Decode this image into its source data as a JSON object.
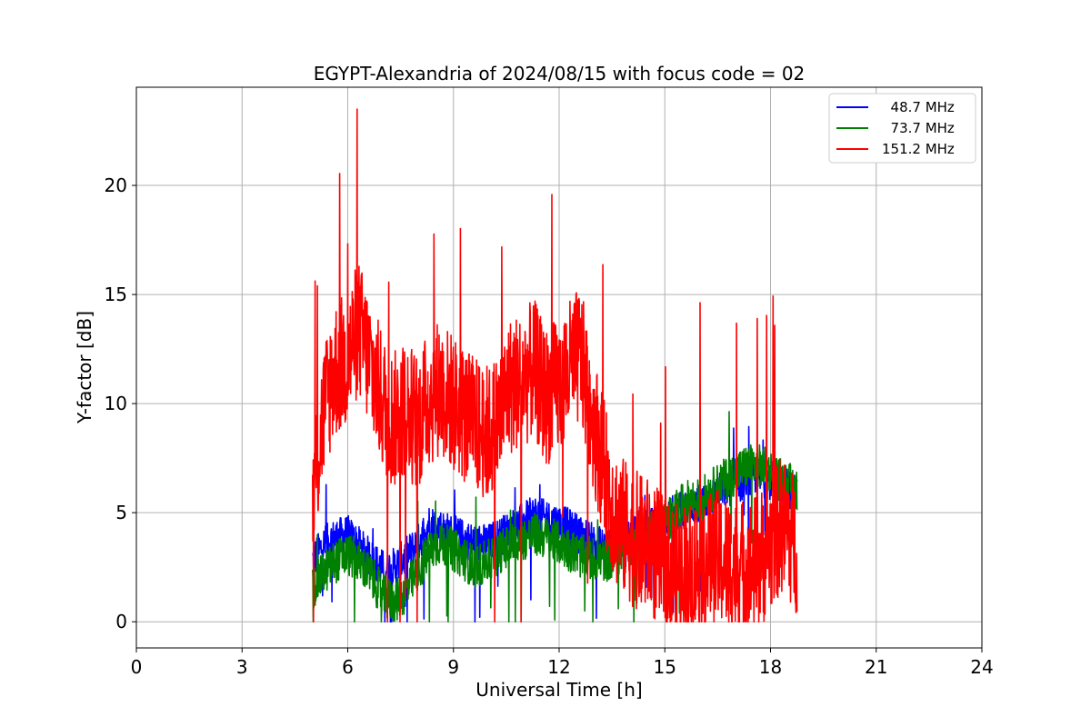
{
  "chart_data": {
    "type": "line",
    "title": "EGYPT-Alexandria of 2024/08/15 with focus code = 02",
    "xlabel": "Universal Time [h]",
    "ylabel": "Y-factor [dB]",
    "xlim": [
      0,
      24
    ],
    "ylim": [
      -1.2,
      24.5
    ],
    "xticks": [
      0,
      3,
      6,
      9,
      12,
      15,
      18,
      21,
      24
    ],
    "yticks": [
      0,
      5,
      10,
      15,
      20
    ],
    "xtick_labels": [
      "0",
      "3",
      "6",
      "9",
      "12",
      "15",
      "18",
      "21",
      "24"
    ],
    "ytick_labels": [
      "0",
      "5",
      "10",
      "15",
      "20"
    ],
    "grid": true,
    "legend_position": "top-right",
    "series": [
      {
        "name": "  48.7 MHz",
        "color": "#0000ff",
        "x": [
          5.0,
          5.3,
          5.6,
          6.0,
          6.3,
          6.6,
          7.0,
          7.3,
          7.6,
          8.0,
          8.3,
          8.6,
          9.0,
          9.3,
          9.6,
          10.0,
          10.3,
          10.6,
          11.0,
          11.3,
          11.6,
          12.0,
          12.3,
          12.6,
          13.0,
          13.3,
          13.6,
          14.0,
          14.3,
          14.6,
          15.0,
          15.3,
          15.6,
          16.0,
          16.3,
          16.6,
          17.0,
          17.3,
          17.6,
          18.0,
          18.3,
          18.75
        ],
        "y": [
          2.8,
          3.5,
          3.8,
          4.0,
          3.5,
          3.0,
          2.4,
          2.5,
          2.9,
          3.6,
          4.5,
          4.3,
          4.0,
          3.8,
          3.6,
          3.6,
          3.9,
          4.2,
          4.6,
          4.9,
          4.7,
          4.5,
          4.3,
          4.0,
          3.6,
          3.4,
          3.5,
          4.0,
          4.3,
          4.3,
          4.6,
          5.0,
          5.2,
          5.4,
          5.7,
          6.0,
          6.3,
          6.5,
          6.6,
          6.5,
          6.3,
          5.9
        ],
        "spread": 0.9
      },
      {
        "name": "  73.7 MHz",
        "color": "#008000",
        "x": [
          5.0,
          5.3,
          5.6,
          6.0,
          6.3,
          6.6,
          7.0,
          7.3,
          7.6,
          8.0,
          8.3,
          8.6,
          9.0,
          9.3,
          9.6,
          10.0,
          10.3,
          10.6,
          11.0,
          11.3,
          11.6,
          12.0,
          12.3,
          12.6,
          13.0,
          13.3,
          13.6,
          14.0,
          14.3,
          14.6,
          15.0,
          15.3,
          15.6,
          16.0,
          16.3,
          16.6,
          17.0,
          17.3,
          17.6,
          18.0,
          18.3,
          18.75
        ],
        "y": [
          1.5,
          2.2,
          2.7,
          3.1,
          2.8,
          2.2,
          1.2,
          0.9,
          1.3,
          2.3,
          3.2,
          3.6,
          3.3,
          2.9,
          2.5,
          2.8,
          3.2,
          3.5,
          3.8,
          4.0,
          3.9,
          3.6,
          3.3,
          3.0,
          2.9,
          2.8,
          3.0,
          3.5,
          3.9,
          4.2,
          4.5,
          5.0,
          5.5,
          5.6,
          6.0,
          6.4,
          6.8,
          7.1,
          7.2,
          6.9,
          6.5,
          6.1
        ],
        "spread": 1.0
      },
      {
        "name": "151.2 MHz",
        "color": "#ff0000",
        "x": [
          5.0,
          5.3,
          5.6,
          6.0,
          6.3,
          6.6,
          7.0,
          7.3,
          7.6,
          8.0,
          8.3,
          8.6,
          9.0,
          9.3,
          9.6,
          10.0,
          10.3,
          10.6,
          11.0,
          11.3,
          11.6,
          12.0,
          12.3,
          12.6,
          13.0,
          13.3,
          13.6,
          14.0,
          14.3,
          14.6,
          15.0,
          15.3,
          15.6,
          16.0,
          16.3,
          16.6,
          17.0,
          17.3,
          17.6,
          18.0,
          18.3,
          18.75
        ],
        "y": [
          5.5,
          9.5,
          11.5,
          12.0,
          13.5,
          12.0,
          10.0,
          9.2,
          9.8,
          9.2,
          10.2,
          10.8,
          10.0,
          9.5,
          9.0,
          8.6,
          9.3,
          10.8,
          11.2,
          11.6,
          10.3,
          10.8,
          11.6,
          12.2,
          9.0,
          6.8,
          4.8,
          4.0,
          3.6,
          3.4,
          2.5,
          2.2,
          2.4,
          2.6,
          2.8,
          2.9,
          2.5,
          2.5,
          2.7,
          3.5,
          4.5,
          3.5
        ],
        "spread": 3.2
      }
    ]
  }
}
